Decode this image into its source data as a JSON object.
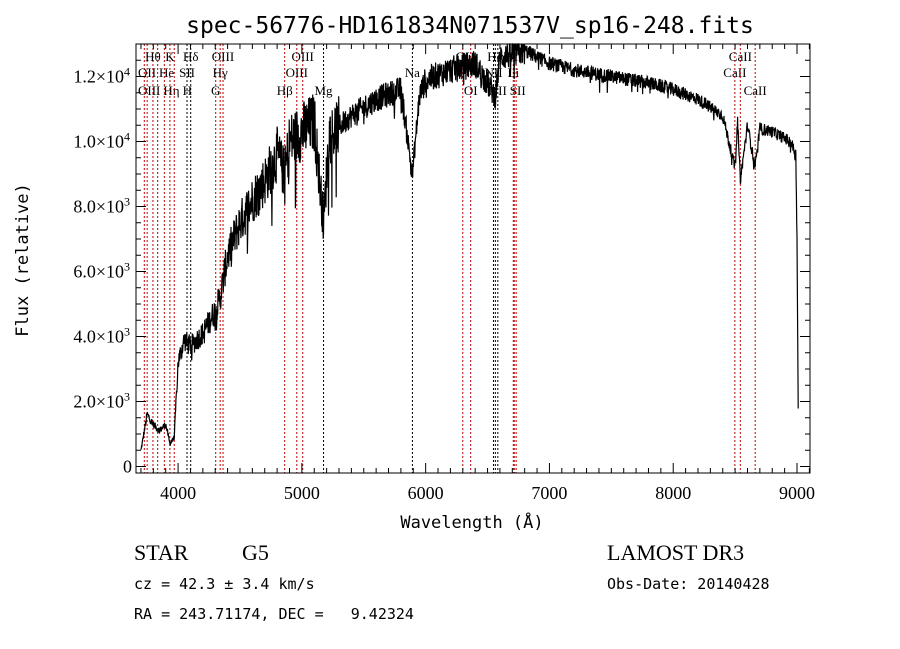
{
  "chart_data": {
    "type": "line",
    "title": "spec-56776-HD161834N071537V_sp16-248.fits",
    "xlabel": "Wavelength (Å)",
    "ylabel": "Flux (relative)",
    "xlim": [
      3660,
      9105
    ],
    "ylim": [
      -200,
      13000
    ],
    "xticks": [
      {
        "v": 4000,
        "label": "4000"
      },
      {
        "v": 5000,
        "label": "5000"
      },
      {
        "v": 6000,
        "label": "6000"
      },
      {
        "v": 7000,
        "label": "7000"
      },
      {
        "v": 8000,
        "label": "8000"
      },
      {
        "v": 9000,
        "label": "9000"
      }
    ],
    "yticks": [
      {
        "v": 0,
        "mant": "0",
        "exp": ""
      },
      {
        "v": 2000,
        "mant": "2.0×10",
        "exp": "3"
      },
      {
        "v": 4000,
        "mant": "4.0×10",
        "exp": "3"
      },
      {
        "v": 6000,
        "mant": "6.0×10",
        "exp": "3"
      },
      {
        "v": 8000,
        "mant": "8.0×10",
        "exp": "3"
      },
      {
        "v": 10000,
        "mant": "1.0×10",
        "exp": "4"
      },
      {
        "v": 12000,
        "mant": "1.2×10",
        "exp": "4"
      }
    ],
    "grid": false,
    "series": [
      {
        "name": "spectrum",
        "x": [
          3700,
          3750,
          3800,
          3850,
          3900,
          3934,
          3969,
          4000,
          4050,
          4100,
          4200,
          4300,
          4340,
          4400,
          4500,
          4600,
          4700,
          4800,
          4861,
          4900,
          5000,
          5100,
          5175,
          5220,
          5400,
          5600,
          5800,
          5893,
          5950,
          6000,
          6200,
          6400,
          6563,
          6600,
          6800,
          7000,
          7200,
          7500,
          7800,
          8000,
          8200,
          8400,
          8498,
          8520,
          8542,
          8600,
          8662,
          8700,
          8800,
          8950,
          8990,
          9000,
          9010
        ],
        "y": [
          500,
          1600,
          1300,
          1100,
          1300,
          700,
          900,
          3200,
          3900,
          3700,
          4100,
          4800,
          5200,
          6500,
          7500,
          8200,
          8800,
          9600,
          9000,
          10000,
          10300,
          10600,
          7500,
          10200,
          10800,
          11300,
          11600,
          9000,
          11400,
          11900,
          12200,
          12400,
          11400,
          12600,
          12800,
          12400,
          12200,
          12000,
          11800,
          11600,
          11300,
          10800,
          9200,
          10600,
          8800,
          10500,
          9200,
          10400,
          10300,
          10000,
          9600,
          7000,
          1800
        ]
      }
    ],
    "lines": [
      {
        "w": 3727,
        "label": "OII",
        "row": 2,
        "color": "red"
      },
      {
        "w": 3750,
        "label": "OIII",
        "row": 3,
        "color": "red"
      },
      {
        "w": 3797,
        "label": "Hθ",
        "row": 1,
        "color": "red"
      },
      {
        "w": 3835,
        "label": "Hη",
        "row": 3,
        "color": "red"
      },
      {
        "w": 3889,
        "label": "He",
        "row": 2,
        "color": "red"
      },
      {
        "w": 3934,
        "label": "K",
        "row": 1,
        "color": "red"
      },
      {
        "w": 3969,
        "label": "H",
        "row": 3,
        "color": "red"
      },
      {
        "w": 4072,
        "label": "SII",
        "row": 2,
        "color": "black"
      },
      {
        "w": 4102,
        "label": "Hδ",
        "row": 1,
        "color": "black"
      },
      {
        "w": 4304,
        "label": "G",
        "row": 3,
        "color": "red"
      },
      {
        "w": 4340,
        "label": "Hγ",
        "row": 2,
        "color": "red"
      },
      {
        "w": 4363,
        "label": "OIII",
        "row": 1,
        "color": "red"
      },
      {
        "w": 4861,
        "label": "Hβ",
        "row": 3,
        "color": "red"
      },
      {
        "w": 4959,
        "label": "OIII",
        "row": 2,
        "color": "red"
      },
      {
        "w": 5007,
        "label": "OIII",
        "row": 1,
        "color": "red"
      },
      {
        "w": 5175,
        "label": "Mg",
        "row": 3,
        "color": "black"
      },
      {
        "w": 5893,
        "label": "Na",
        "row": 2,
        "color": "black"
      },
      {
        "w": 6300,
        "label": "OI",
        "row": 1,
        "color": "red"
      },
      {
        "w": 6364,
        "label": "OI",
        "row": 3,
        "color": "red"
      },
      {
        "w": 6548,
        "label": "NII",
        "row": 2,
        "color": "black"
      },
      {
        "w": 6563,
        "label": "Hα",
        "row": 1,
        "color": "black"
      },
      {
        "w": 6583,
        "label": "NII",
        "row": 3,
        "color": "black"
      },
      {
        "w": 6708,
        "label": "Li",
        "row": 2,
        "color": "red"
      },
      {
        "w": 6716,
        "label": "SII",
        "row": 1,
        "color": "red"
      },
      {
        "w": 6731,
        "label": "SII",
        "row": 3,
        "color": "red"
      },
      {
        "w": 8498,
        "label": "CaII",
        "row": 2,
        "color": "red"
      },
      {
        "w": 8542,
        "label": "CaII",
        "row": 1,
        "color": "red"
      },
      {
        "w": 8662,
        "label": "CaII",
        "row": 3,
        "color": "red"
      }
    ]
  },
  "info": {
    "object_type": "STAR",
    "subclass": "G5",
    "cz": "cz = 42.3 ± 3.4 km/s",
    "radec": "RA = 243.71174, DEC =   9.42324",
    "survey": "LAMOST DR3",
    "obs_date": "Obs-Date: 20140428"
  },
  "colors": {
    "red": "#c00000",
    "black": "#000000"
  }
}
